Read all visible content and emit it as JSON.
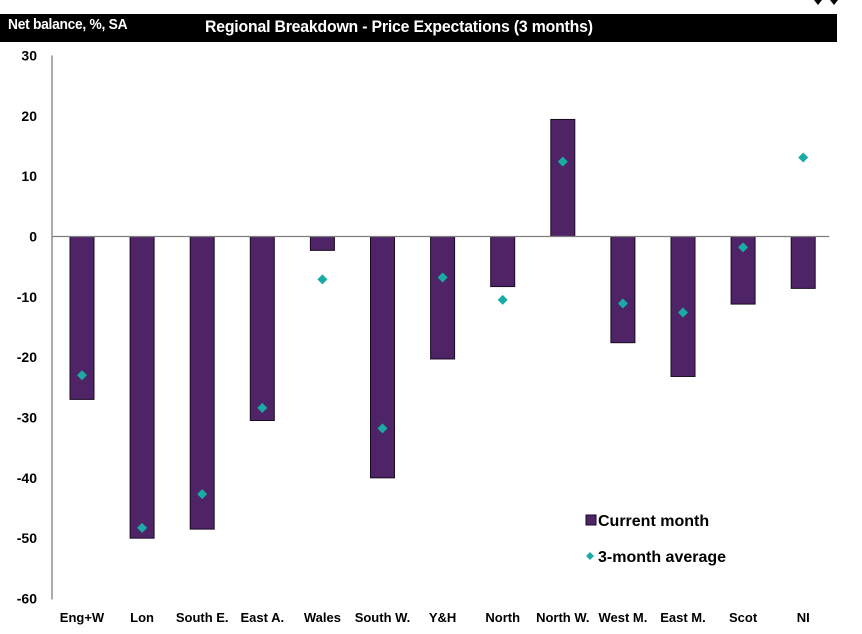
{
  "header": {
    "ylabel": "Net balance, %, SA",
    "title": "Regional Breakdown - Price Expectations (3 months)"
  },
  "colors": {
    "bar": "#4e2466",
    "bar_edge": "#1a0a22",
    "marker": "#1aaba5",
    "axis": "#7f7f7f",
    "header_bg": "#000000",
    "header_text": "#ffffff"
  },
  "chart_data": {
    "type": "bar",
    "title": "Regional Breakdown - Price Expectations (3 months)",
    "xlabel": "",
    "ylabel": "Net balance, %, SA",
    "ylim": [
      -60,
      30
    ],
    "yticks": [
      30,
      20,
      10,
      0,
      -10,
      -20,
      -30,
      -40,
      -50,
      -60
    ],
    "grid": false,
    "legend_position": "bottom-right",
    "categories": [
      "Eng+W",
      "Lon",
      "South E.",
      "East A.",
      "Wales",
      "South W.",
      "Y&H",
      "North",
      "North W.",
      "West M.",
      "East M.",
      "Scot",
      "NI"
    ],
    "series": [
      {
        "name": "Current month",
        "kind": "bar",
        "values": [
          -27,
          -50,
          -48.5,
          -30.5,
          -2.3,
          -40,
          -20.3,
          -8.3,
          19.4,
          -17.6,
          -23.2,
          -11.2,
          -8.6
        ]
      },
      {
        "name": "3-month average",
        "kind": "marker",
        "values": [
          -23,
          -48.3,
          -42.7,
          -28.4,
          -7.1,
          -31.8,
          -6.8,
          -10.5,
          12.4,
          -11.1,
          -12.6,
          -1.8,
          13.1
        ]
      }
    ]
  }
}
